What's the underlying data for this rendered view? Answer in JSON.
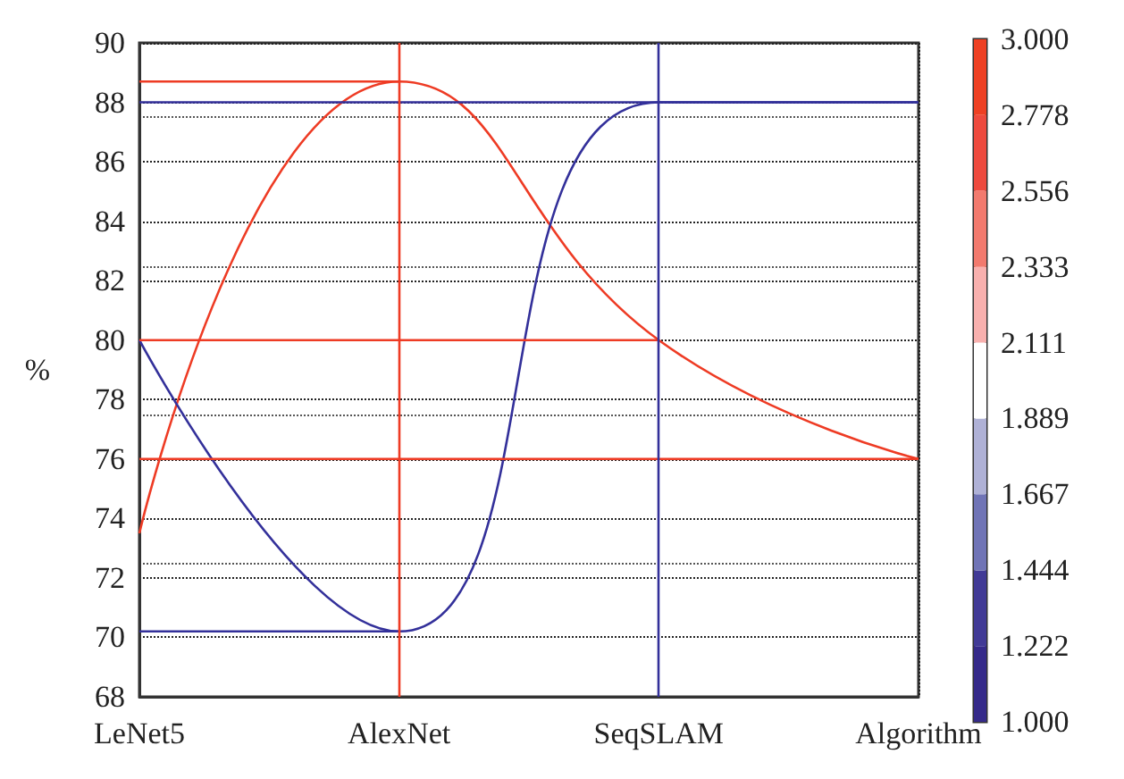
{
  "chart_data": {
    "type": "line",
    "ylabel": "%",
    "categories": [
      "LeNet5",
      "AlexNet",
      "SeqSLAM",
      "Algorithm"
    ],
    "series": [
      {
        "color": "#ee3b24",
        "values": [
          73.5,
          88.7,
          80,
          76
        ]
      },
      {
        "color": "#33309a",
        "values": [
          80,
          70.2,
          88,
          88
        ]
      },
      {
        "color": "#ee3b24",
        "values": [
          88.7,
          88.7,
          null,
          null
        ]
      },
      {
        "color": "#ee3b24",
        "values": [
          80,
          80,
          80,
          null
        ]
      },
      {
        "color": "#ee3b24",
        "values": [
          76,
          76,
          76,
          76
        ]
      },
      {
        "color": "#33309a",
        "values": [
          70.2,
          70.2,
          null,
          null
        ]
      },
      {
        "color": "#33309a",
        "values": [
          88,
          88,
          88,
          88
        ]
      }
    ],
    "ref_lines": [
      {
        "axis": "x",
        "value": "AlexNet",
        "color": "#ee3b24"
      },
      {
        "axis": "x",
        "value": "SeqSLAM",
        "color": "#33309a"
      }
    ],
    "ylim": [
      68,
      90
    ],
    "yticks": [
      68,
      70,
      72,
      74,
      76,
      78,
      80,
      82,
      84,
      86,
      88,
      90
    ],
    "grid": true,
    "marker": "none",
    "line_style": "solid",
    "clim": [
      1,
      3
    ],
    "cticks": [
      {
        "value": 1,
        "label": "1.000"
      },
      {
        "value": 1.222,
        "label": "1.222"
      },
      {
        "value": 1.444,
        "label": "1.444"
      },
      {
        "value": 1.667,
        "label": "1.667"
      },
      {
        "value": 1.889,
        "label": "1.889"
      },
      {
        "value": 2.111,
        "label": "2.111"
      },
      {
        "value": 2.333,
        "label": "2.333"
      },
      {
        "value": 2.556,
        "label": "2.556"
      },
      {
        "value": 2.778,
        "label": "2.778"
      },
      {
        "value": 3,
        "label": "3.000"
      }
    ],
    "colors": [
      "#352a8a",
      "#413a96",
      "#7074b6",
      "#afb1d6",
      "#ffffff",
      "#f8b0ae",
      "#f27a6e",
      "#ee4a3e",
      "#ee4023"
    ]
  }
}
